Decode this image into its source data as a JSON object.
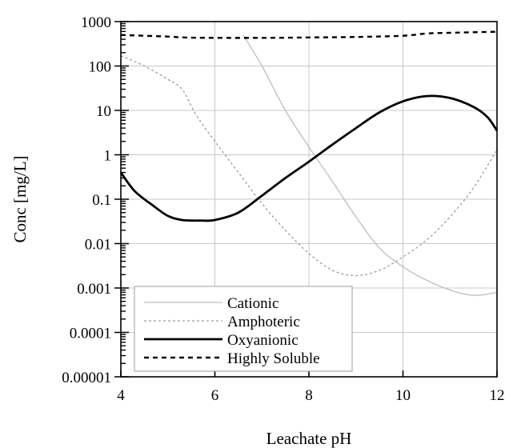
{
  "chart_data": {
    "type": "line",
    "xlabel": "Leachate pH",
    "ylabel": "Conc [mg/L]",
    "x_scale": "linear",
    "y_scale": "log",
    "xlim": [
      4,
      12
    ],
    "ylim": [
      1e-05,
      1000
    ],
    "x_ticks": [
      "4",
      "6",
      "8",
      "10",
      "12"
    ],
    "y_ticks": [
      "0.00001",
      "0.0001",
      "0.001",
      "0.01",
      "0.1",
      "1",
      "10",
      "100",
      "1000"
    ],
    "grid": "on",
    "legend_position": "bottom-left",
    "series": [
      {
        "name": "Cationic",
        "style": "thin-solid",
        "color": "#bdbdbd",
        "points": [
          [
            6.6,
            500
          ],
          [
            7.0,
            100
          ],
          [
            7.5,
            10
          ],
          [
            8.0,
            1.5
          ],
          [
            8.5,
            0.25
          ],
          [
            9.0,
            0.04
          ],
          [
            9.5,
            0.008
          ],
          [
            10.0,
            0.003
          ],
          [
            10.5,
            0.0015
          ],
          [
            11.0,
            0.0009
          ],
          [
            11.4,
            0.0007
          ],
          [
            11.7,
            0.0007
          ],
          [
            12.0,
            0.0008
          ]
        ]
      },
      {
        "name": "Amphoteric",
        "style": "dotted",
        "color": "#9e9e9e",
        "points": [
          [
            4.0,
            170
          ],
          [
            4.5,
            100
          ],
          [
            5.0,
            50
          ],
          [
            5.3,
            30
          ],
          [
            5.6,
            8
          ],
          [
            6.0,
            2
          ],
          [
            6.5,
            0.4
          ],
          [
            7.0,
            0.08
          ],
          [
            7.5,
            0.02
          ],
          [
            8.0,
            0.006
          ],
          [
            8.5,
            0.0025
          ],
          [
            9.0,
            0.0019
          ],
          [
            9.5,
            0.0025
          ],
          [
            10.0,
            0.005
          ],
          [
            10.5,
            0.012
          ],
          [
            11.0,
            0.04
          ],
          [
            11.5,
            0.18
          ],
          [
            12.0,
            1.3
          ]
        ]
      },
      {
        "name": "Oxyanionic",
        "style": "thick-solid",
        "color": "#000000",
        "points": [
          [
            4.0,
            0.4
          ],
          [
            4.3,
            0.15
          ],
          [
            4.7,
            0.07
          ],
          [
            5.0,
            0.042
          ],
          [
            5.3,
            0.034
          ],
          [
            5.7,
            0.033
          ],
          [
            6.0,
            0.034
          ],
          [
            6.5,
            0.05
          ],
          [
            7.0,
            0.12
          ],
          [
            7.5,
            0.3
          ],
          [
            8.0,
            0.7
          ],
          [
            8.5,
            1.7
          ],
          [
            9.0,
            4
          ],
          [
            9.5,
            9
          ],
          [
            10.0,
            16
          ],
          [
            10.5,
            21
          ],
          [
            11.0,
            19
          ],
          [
            11.5,
            12
          ],
          [
            11.8,
            7
          ],
          [
            12.0,
            3.5
          ]
        ]
      },
      {
        "name": "Highly Soluble",
        "style": "dashed",
        "color": "#000000",
        "points": [
          [
            4.0,
            500
          ],
          [
            5.0,
            460
          ],
          [
            5.3,
            440
          ],
          [
            6.0,
            430
          ],
          [
            7.0,
            430
          ],
          [
            8.0,
            440
          ],
          [
            9.0,
            450
          ],
          [
            10.0,
            480
          ],
          [
            10.5,
            540
          ],
          [
            11.0,
            560
          ],
          [
            12.0,
            590
          ]
        ]
      }
    ]
  }
}
